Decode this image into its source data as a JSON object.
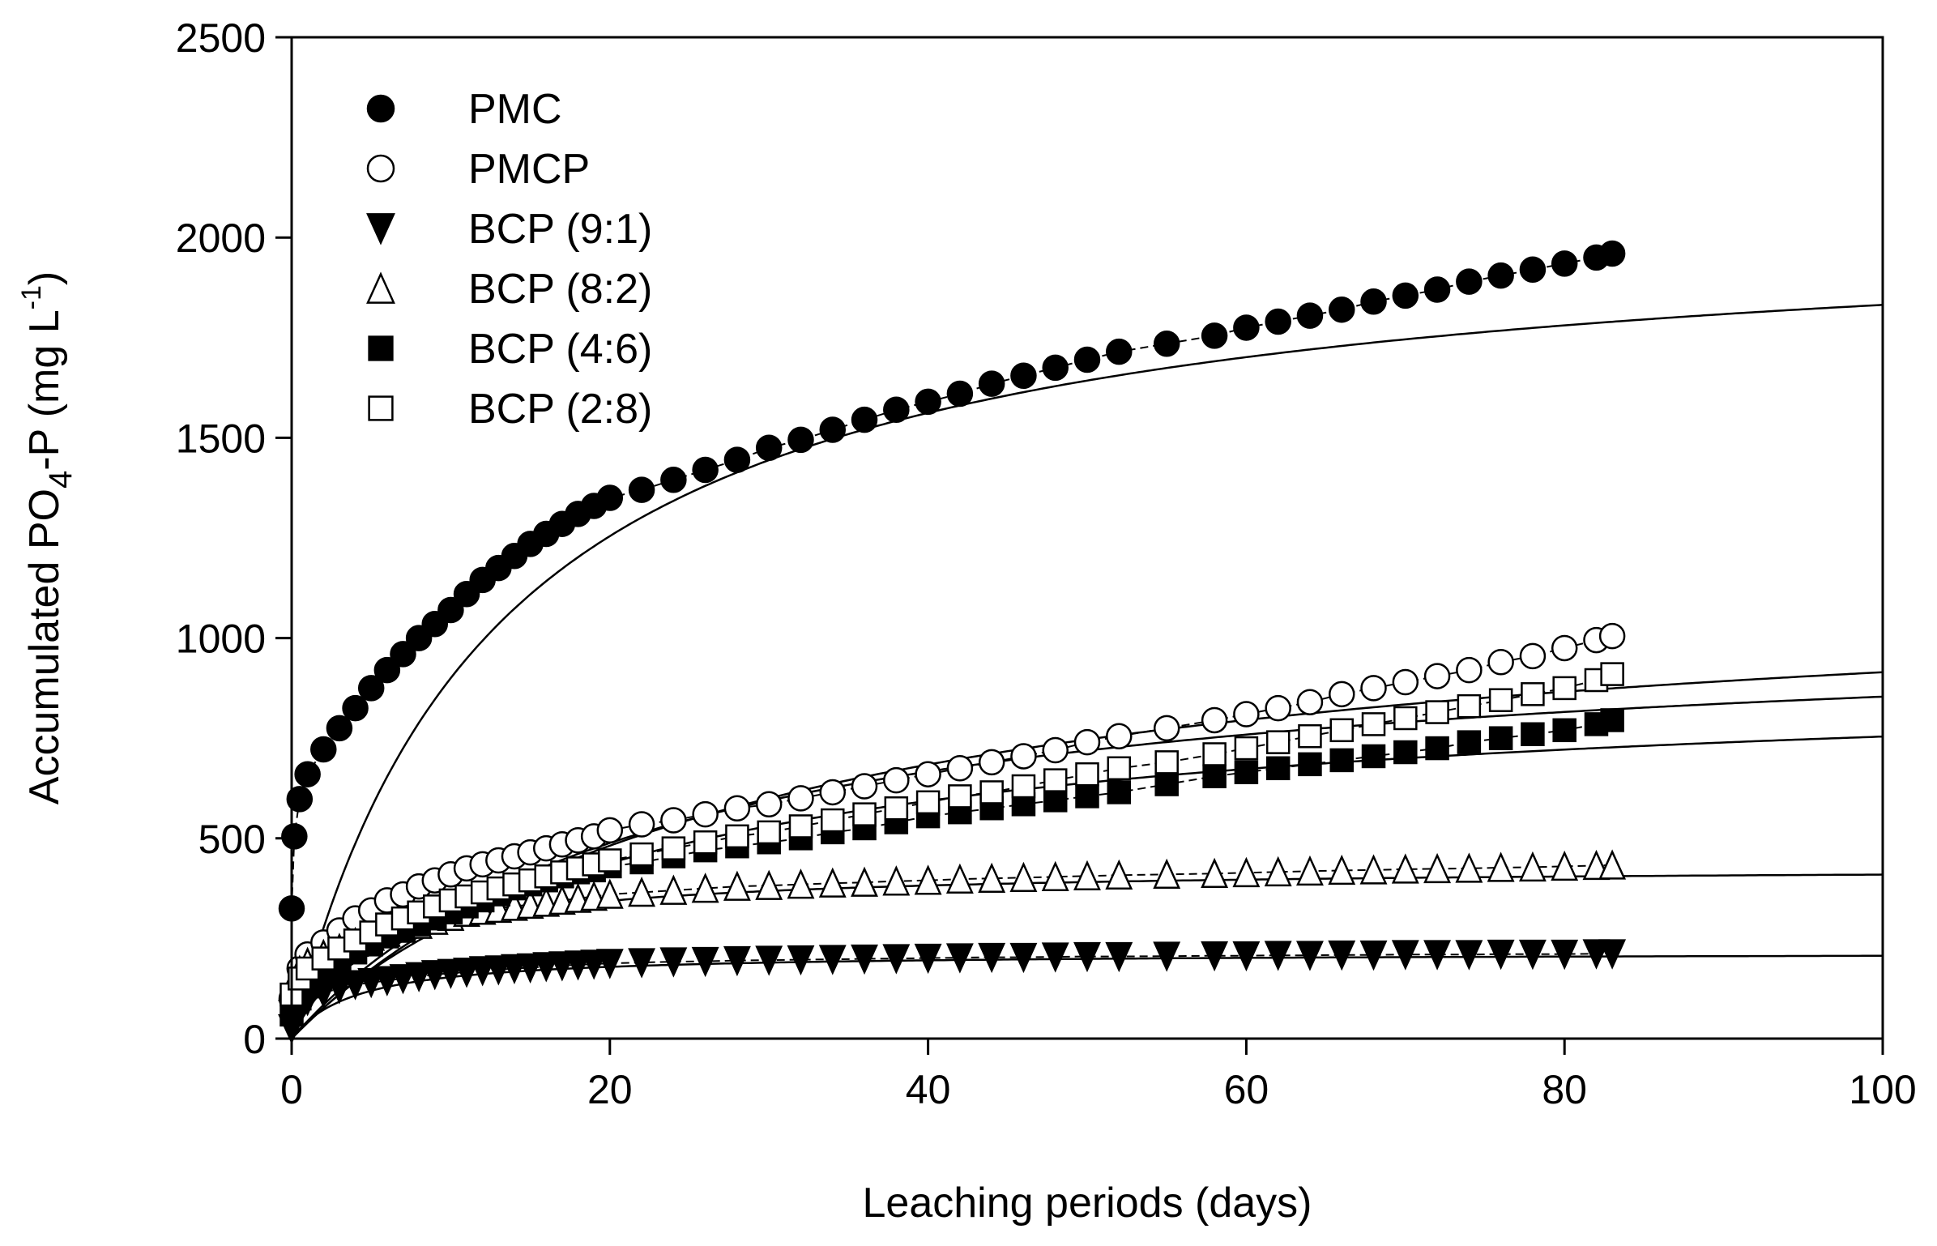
{
  "chart_data": {
    "type": "scatter",
    "xlabel": "Leaching periods (days)",
    "ylabel": {
      "prefix": "Accumulated PO",
      "sub": "4",
      "mid": "-P (mg L",
      "sup": "-1",
      "suffix": ")"
    },
    "xlim": [
      0,
      100
    ],
    "ylim": [
      0,
      2500
    ],
    "xticks": [
      0,
      20,
      40,
      60,
      80,
      100
    ],
    "yticks": [
      0,
      500,
      1000,
      1500,
      2000,
      2500
    ],
    "grid": false,
    "legend_position": "top-left",
    "colors": {
      "filled": "#000000",
      "open": "#ffffff",
      "line": "#000000"
    },
    "series": [
      {
        "name": "PMC",
        "marker": "circle-filled",
        "x": [
          0,
          0.17,
          0.5,
          1,
          2,
          3,
          4,
          5,
          6,
          7,
          8,
          9,
          10,
          11,
          12,
          13,
          14,
          15,
          16,
          17,
          18,
          19,
          20,
          22,
          24,
          26,
          28,
          30,
          32,
          34,
          36,
          38,
          40,
          42,
          44,
          46,
          48,
          50,
          52,
          55,
          58,
          60,
          62,
          64,
          66,
          68,
          70,
          72,
          74,
          76,
          78,
          80,
          82,
          83
        ],
        "y": [
          325,
          505,
          598,
          660,
          722,
          775,
          825,
          875,
          920,
          960,
          1000,
          1035,
          1070,
          1110,
          1145,
          1175,
          1205,
          1235,
          1260,
          1285,
          1310,
          1330,
          1350,
          1370,
          1395,
          1420,
          1445,
          1475,
          1495,
          1520,
          1545,
          1570,
          1590,
          1610,
          1635,
          1655,
          1675,
          1695,
          1715,
          1735,
          1755,
          1775,
          1790,
          1805,
          1820,
          1840,
          1855,
          1870,
          1890,
          1905,
          1920,
          1935,
          1950,
          1960
        ],
        "fit": {
          "a": 2070,
          "b": 13
        }
      },
      {
        "name": "PMCP",
        "marker": "circle-open",
        "x": [
          0,
          0.5,
          1,
          2,
          3,
          4,
          5,
          6,
          7,
          8,
          9,
          10,
          11,
          12,
          13,
          14,
          15,
          16,
          17,
          18,
          19,
          20,
          22,
          24,
          26,
          28,
          30,
          32,
          34,
          36,
          38,
          40,
          42,
          44,
          46,
          48,
          50,
          52,
          55,
          58,
          60,
          62,
          64,
          66,
          68,
          70,
          72,
          74,
          76,
          78,
          80,
          82,
          83
        ],
        "y": [
          100,
          175,
          210,
          240,
          270,
          300,
          320,
          345,
          360,
          380,
          395,
          410,
          425,
          435,
          445,
          455,
          465,
          475,
          485,
          495,
          505,
          520,
          535,
          545,
          560,
          575,
          585,
          600,
          615,
          630,
          645,
          660,
          675,
          690,
          705,
          720,
          740,
          755,
          775,
          795,
          810,
          825,
          840,
          860,
          875,
          890,
          905,
          920,
          940,
          955,
          975,
          995,
          1005
        ],
        "fit": {
          "a": 1180,
          "b": 29
        }
      },
      {
        "name": "BCP (9:1)",
        "marker": "triangle-down-filled",
        "x": [
          0,
          0.5,
          1,
          2,
          3,
          4,
          5,
          6,
          7,
          8,
          9,
          10,
          11,
          12,
          13,
          14,
          15,
          16,
          17,
          18,
          19,
          20,
          22,
          24,
          26,
          28,
          30,
          32,
          34,
          36,
          38,
          40,
          42,
          44,
          46,
          48,
          50,
          52,
          55,
          58,
          60,
          62,
          64,
          66,
          68,
          70,
          72,
          74,
          76,
          78,
          80,
          82,
          83
        ],
        "y": [
          25,
          70,
          95,
          115,
          125,
          135,
          140,
          145,
          150,
          155,
          160,
          163,
          166,
          170,
          172,
          175,
          177,
          180,
          182,
          184,
          186,
          188,
          190,
          192,
          193,
          195,
          196,
          197,
          198,
          199,
          200,
          201,
          202,
          203,
          203,
          204,
          205,
          205,
          206,
          207,
          207,
          208,
          208,
          209,
          209,
          210,
          210,
          210,
          211,
          211,
          211,
          212,
          212
        ],
        "fit": {
          "a": 215,
          "b": 4
        }
      },
      {
        "name": "BCP (8:2)",
        "marker": "triangle-up-open",
        "x": [
          0,
          0.5,
          1,
          2,
          3,
          4,
          5,
          6,
          7,
          8,
          9,
          10,
          11,
          12,
          13,
          14,
          15,
          16,
          17,
          18,
          19,
          20,
          22,
          24,
          26,
          28,
          30,
          32,
          34,
          36,
          38,
          40,
          42,
          44,
          46,
          48,
          50,
          52,
          55,
          58,
          60,
          62,
          64,
          66,
          68,
          70,
          72,
          74,
          76,
          78,
          80,
          82,
          83
        ],
        "y": [
          130,
          170,
          190,
          210,
          225,
          240,
          255,
          265,
          275,
          285,
          295,
          305,
          315,
          320,
          325,
          330,
          335,
          340,
          345,
          350,
          355,
          360,
          365,
          370,
          375,
          380,
          382,
          385,
          388,
          390,
          393,
          395,
          398,
          400,
          402,
          404,
          406,
          408,
          410,
          412,
          414,
          416,
          418,
          420,
          421,
          423,
          424,
          425,
          427,
          428,
          430,
          432,
          433
        ],
        "fit": {
          "a": 430,
          "b": 5
        }
      },
      {
        "name": "BCP (4:6)",
        "marker": "square-filled",
        "x": [
          0,
          0.5,
          1,
          2,
          3,
          4,
          5,
          6,
          7,
          8,
          9,
          10,
          11,
          12,
          13,
          14,
          15,
          16,
          17,
          18,
          19,
          20,
          22,
          24,
          26,
          28,
          30,
          32,
          34,
          36,
          38,
          40,
          42,
          44,
          46,
          48,
          50,
          52,
          55,
          58,
          60,
          62,
          64,
          66,
          68,
          70,
          72,
          74,
          76,
          78,
          80,
          82,
          83
        ],
        "y": [
          60,
          100,
          130,
          160,
          190,
          215,
          235,
          255,
          270,
          285,
          300,
          315,
          330,
          345,
          360,
          375,
          385,
          395,
          405,
          415,
          420,
          430,
          440,
          455,
          470,
          480,
          490,
          500,
          515,
          525,
          540,
          555,
          565,
          575,
          585,
          595,
          605,
          615,
          635,
          655,
          665,
          675,
          685,
          695,
          705,
          715,
          725,
          740,
          750,
          760,
          770,
          785,
          795
        ],
        "fit": {
          "a": 920,
          "b": 22
        }
      },
      {
        "name": "BCP (2:8)",
        "marker": "square-open",
        "x": [
          0,
          0.5,
          1,
          2,
          3,
          4,
          5,
          6,
          7,
          8,
          9,
          10,
          11,
          12,
          13,
          14,
          15,
          16,
          17,
          18,
          19,
          20,
          22,
          24,
          26,
          28,
          30,
          32,
          34,
          36,
          38,
          40,
          42,
          44,
          46,
          48,
          50,
          52,
          55,
          58,
          60,
          62,
          64,
          66,
          68,
          70,
          72,
          74,
          76,
          78,
          80,
          82,
          83
        ],
        "y": [
          110,
          150,
          175,
          200,
          225,
          245,
          265,
          285,
          300,
          315,
          330,
          345,
          355,
          365,
          375,
          385,
          395,
          405,
          415,
          425,
          435,
          445,
          460,
          475,
          490,
          505,
          515,
          530,
          545,
          560,
          575,
          590,
          605,
          615,
          630,
          645,
          660,
          675,
          690,
          710,
          725,
          740,
          755,
          770,
          785,
          800,
          815,
          830,
          845,
          860,
          875,
          895,
          910
        ],
        "fit": {
          "a": 1050,
          "b": 23
        }
      }
    ]
  }
}
